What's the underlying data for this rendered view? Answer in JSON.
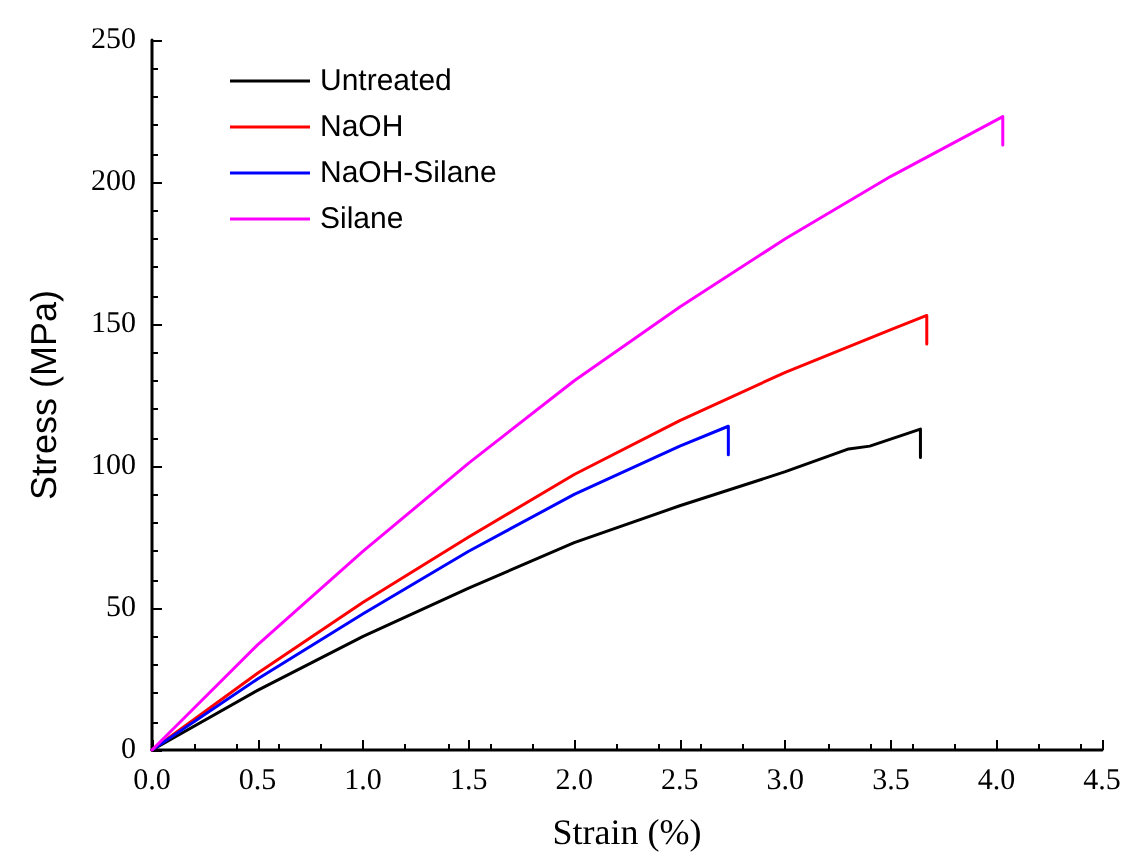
{
  "chart_data": {
    "type": "line",
    "xlabel": "Strain (%)",
    "ylabel": "Stress (MPa)",
    "xlim": [
      0,
      4.5
    ],
    "xticks": [
      {
        "value": 0,
        "label": "0.0"
      },
      0.5,
      {
        "value": 1,
        "label": "1.0"
      },
      1.5,
      {
        "value": 2,
        "label": "2.0"
      },
      2.5,
      {
        "value": 3,
        "label": "3.0"
      },
      3.5,
      {
        "value": 4,
        "label": "4.0"
      },
      4.5
    ],
    "ylim": [
      0,
      250
    ],
    "yticks": [
      0,
      50,
      100,
      150,
      200,
      250
    ],
    "legend": "top left",
    "grid": false,
    "marker": "none",
    "line_style": "solid",
    "series": [
      {
        "name": "Untreated",
        "color": "#000000",
        "x": [
          0,
          0.5,
          1,
          1.5,
          2,
          2.5,
          3,
          3.3,
          3.4,
          3.64,
          3.64
        ],
        "values": [
          0,
          21,
          40,
          57,
          73,
          86,
          98,
          106,
          107,
          113,
          103
        ]
      },
      {
        "name": "NaOH",
        "color": "#ff0000",
        "x": [
          0,
          0.5,
          1,
          1.5,
          2,
          2.5,
          3,
          3.5,
          3.67,
          3.67
        ],
        "values": [
          0,
          27,
          52,
          75,
          97,
          116,
          133,
          148,
          153,
          143
        ]
      },
      {
        "name": "NaOH-Silane",
        "color": "#0000ff",
        "x": [
          0,
          0.5,
          1,
          1.5,
          2,
          2.5,
          2.73,
          2.73
        ],
        "values": [
          0,
          25,
          48,
          70,
          90,
          107,
          114,
          104
        ]
      },
      {
        "name": "Silane",
        "color": "#ff00ff",
        "x": [
          0,
          0.5,
          1,
          1.5,
          2,
          2.5,
          3,
          3.5,
          4.03,
          4.03
        ],
        "values": [
          0,
          37,
          70,
          101,
          130,
          156,
          180,
          202,
          223,
          213
        ]
      }
    ]
  }
}
